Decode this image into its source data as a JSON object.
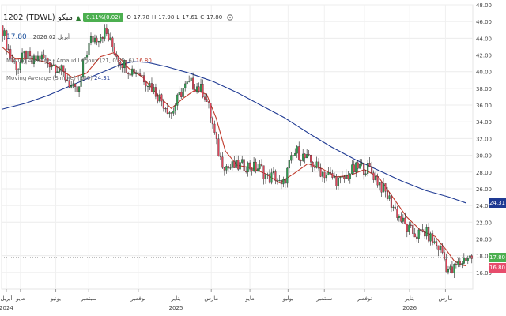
{
  "header": {
    "ticker": "1202 (TDWL) ميكو",
    "change_badge": "0.11%(0.02)",
    "ohlc": [
      "O",
      "17.78",
      "H",
      "17.98",
      "L",
      "17.61",
      "C",
      "17.80"
    ],
    "last_value": "17.80",
    "last_date": "أبريل 02 2026"
  },
  "indicators": [
    {
      "label": "Moving Average - Arnaud Legoux (21, 0.85, 6)",
      "value": "16.80",
      "color": "#c0392b"
    },
    {
      "label": "Moving Average (Simple) (200)",
      "value": "24.31",
      "color": "#1f3a93"
    }
  ],
  "price_tags": [
    {
      "value": "24.31",
      "color": "#1f3a93"
    },
    {
      "value": "17.80",
      "color": "#4caf50"
    },
    {
      "value": "16.80",
      "color": "#e74c6c"
    }
  ],
  "chart_data": {
    "type": "candlestick",
    "ylim": [
      14,
      48
    ],
    "yticks": [
      16,
      18,
      20,
      22,
      24,
      26,
      28,
      30,
      32,
      34,
      36,
      38,
      40,
      42,
      44,
      46,
      48
    ],
    "xtick_labels": [
      {
        "label": "أبريل",
        "sub": "2024",
        "t": 0.01
      },
      {
        "label": "مايو",
        "sub": "",
        "t": 0.04
      },
      {
        "label": "يونيو",
        "sub": "",
        "t": 0.115
      },
      {
        "label": "سبتمبر",
        "sub": "",
        "t": 0.185
      },
      {
        "label": "نوفمبر",
        "sub": "",
        "t": 0.29
      },
      {
        "label": "يناير",
        "sub": "2025",
        "t": 0.37
      },
      {
        "label": "مارس",
        "sub": "",
        "t": 0.445
      },
      {
        "label": "مايو",
        "sub": "",
        "t": 0.527
      },
      {
        "label": "يوليو",
        "sub": "",
        "t": 0.608
      },
      {
        "label": "سبتمبر",
        "sub": "",
        "t": 0.685
      },
      {
        "label": "نوفمبر",
        "sub": "",
        "t": 0.77
      },
      {
        "label": "يناير",
        "sub": "2026",
        "t": 0.866
      },
      {
        "label": "مارس",
        "sub": "",
        "t": 0.942
      }
    ],
    "price_path": [
      [
        0.0,
        45.5
      ],
      [
        0.01,
        43.5
      ],
      [
        0.02,
        41.5
      ],
      [
        0.035,
        40.5
      ],
      [
        0.05,
        42.2
      ],
      [
        0.065,
        41.0
      ],
      [
        0.08,
        41.8
      ],
      [
        0.1,
        41.2
      ],
      [
        0.12,
        40.5
      ],
      [
        0.14,
        39.0
      ],
      [
        0.155,
        37.5
      ],
      [
        0.165,
        37.8
      ],
      [
        0.175,
        41.5
      ],
      [
        0.19,
        43.8
      ],
      [
        0.205,
        44.2
      ],
      [
        0.22,
        44.8
      ],
      [
        0.235,
        43.0
      ],
      [
        0.25,
        41.5
      ],
      [
        0.27,
        40.3
      ],
      [
        0.29,
        40.0
      ],
      [
        0.31,
        38.8
      ],
      [
        0.33,
        37.3
      ],
      [
        0.35,
        35.8
      ],
      [
        0.36,
        35.0
      ],
      [
        0.37,
        36.2
      ],
      [
        0.385,
        38.0
      ],
      [
        0.4,
        38.6
      ],
      [
        0.415,
        38.2
      ],
      [
        0.43,
        37.5
      ],
      [
        0.445,
        34.5
      ],
      [
        0.455,
        31.5
      ],
      [
        0.465,
        29.5
      ],
      [
        0.48,
        28.5
      ],
      [
        0.5,
        28.7
      ],
      [
        0.52,
        28.8
      ],
      [
        0.535,
        28.5
      ],
      [
        0.55,
        28.5
      ],
      [
        0.565,
        27.2
      ],
      [
        0.58,
        27.6
      ],
      [
        0.595,
        26.0
      ],
      [
        0.61,
        28.8
      ],
      [
        0.625,
        30.5
      ],
      [
        0.64,
        29.8
      ],
      [
        0.66,
        29.0
      ],
      [
        0.68,
        28.0
      ],
      [
        0.7,
        27.4
      ],
      [
        0.72,
        26.8
      ],
      [
        0.74,
        28.0
      ],
      [
        0.76,
        28.6
      ],
      [
        0.78,
        28.4
      ],
      [
        0.8,
        26.8
      ],
      [
        0.82,
        25.0
      ],
      [
        0.84,
        23.0
      ],
      [
        0.86,
        21.2
      ],
      [
        0.88,
        20.5
      ],
      [
        0.9,
        20.8
      ],
      [
        0.92,
        19.4
      ],
      [
        0.935,
        18.5
      ],
      [
        0.945,
        16.5
      ],
      [
        0.955,
        16.0
      ],
      [
        0.965,
        16.8
      ],
      [
        0.975,
        17.2
      ],
      [
        0.985,
        17.8
      ]
    ],
    "alma_path": [
      [
        0.0,
        43.0
      ],
      [
        0.03,
        41.5
      ],
      [
        0.06,
        41.6
      ],
      [
        0.09,
        41.2
      ],
      [
        0.12,
        40.5
      ],
      [
        0.15,
        39.3
      ],
      [
        0.18,
        39.8
      ],
      [
        0.21,
        41.8
      ],
      [
        0.24,
        42.3
      ],
      [
        0.27,
        40.4
      ],
      [
        0.3,
        39.3
      ],
      [
        0.33,
        37.3
      ],
      [
        0.36,
        35.6
      ],
      [
        0.385,
        36.8
      ],
      [
        0.41,
        37.8
      ],
      [
        0.435,
        37.3
      ],
      [
        0.455,
        34.5
      ],
      [
        0.475,
        30.5
      ],
      [
        0.5,
        28.8
      ],
      [
        0.53,
        28.5
      ],
      [
        0.56,
        27.8
      ],
      [
        0.59,
        26.7
      ],
      [
        0.62,
        27.8
      ],
      [
        0.65,
        29.0
      ],
      [
        0.68,
        28.4
      ],
      [
        0.71,
        27.4
      ],
      [
        0.74,
        27.6
      ],
      [
        0.77,
        28.3
      ],
      [
        0.8,
        27.4
      ],
      [
        0.83,
        25.0
      ],
      [
        0.86,
        22.6
      ],
      [
        0.89,
        21.0
      ],
      [
        0.92,
        20.3
      ],
      [
        0.945,
        18.6
      ],
      [
        0.96,
        17.4
      ],
      [
        0.975,
        16.9
      ],
      [
        0.985,
        16.8
      ]
    ],
    "sma200_path": [
      [
        0.0,
        35.5
      ],
      [
        0.05,
        36.2
      ],
      [
        0.1,
        37.2
      ],
      [
        0.15,
        38.4
      ],
      [
        0.2,
        39.6
      ],
      [
        0.25,
        40.8
      ],
      [
        0.28,
        41.2
      ],
      [
        0.31,
        41.1
      ],
      [
        0.35,
        40.6
      ],
      [
        0.4,
        39.8
      ],
      [
        0.45,
        38.8
      ],
      [
        0.5,
        37.5
      ],
      [
        0.55,
        36.0
      ],
      [
        0.6,
        34.5
      ],
      [
        0.65,
        32.7
      ],
      [
        0.7,
        31.0
      ],
      [
        0.75,
        29.5
      ],
      [
        0.8,
        28.2
      ],
      [
        0.85,
        26.9
      ],
      [
        0.9,
        25.8
      ],
      [
        0.95,
        25.0
      ],
      [
        0.985,
        24.31
      ]
    ]
  }
}
